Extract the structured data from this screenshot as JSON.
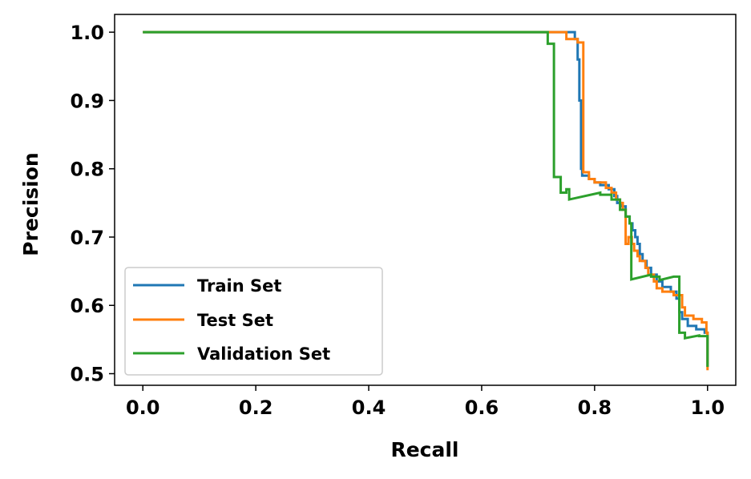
{
  "chart_data": {
    "type": "line",
    "title": "",
    "xlabel": "Recall",
    "ylabel": "Precision",
    "xlim": [
      -0.05,
      1.05
    ],
    "ylim": [
      0.483,
      1.026
    ],
    "xticks": [
      0.0,
      0.2,
      0.4,
      0.6,
      0.8,
      1.0
    ],
    "xtick_labels": [
      "0.0",
      "0.2",
      "0.4",
      "0.6",
      "0.8",
      "1.0"
    ],
    "yticks": [
      0.5,
      0.6,
      0.7,
      0.8,
      0.9,
      1.0
    ],
    "ytick_labels": [
      "0.5",
      "0.6",
      "0.7",
      "0.8",
      "0.9",
      "1.0"
    ],
    "grid": false,
    "legend_position": "lower-left",
    "series": [
      {
        "name": "Train Set",
        "color": "#1f77b4",
        "points": [
          [
            0.0,
            1.0
          ],
          [
            0.765,
            1.0
          ],
          [
            0.765,
            0.99
          ],
          [
            0.77,
            0.99
          ],
          [
            0.77,
            0.96
          ],
          [
            0.773,
            0.96
          ],
          [
            0.773,
            0.9
          ],
          [
            0.776,
            0.9
          ],
          [
            0.776,
            0.8
          ],
          [
            0.778,
            0.8
          ],
          [
            0.778,
            0.79
          ],
          [
            0.79,
            0.79
          ],
          [
            0.79,
            0.785
          ],
          [
            0.8,
            0.785
          ],
          [
            0.8,
            0.78
          ],
          [
            0.81,
            0.78
          ],
          [
            0.81,
            0.776
          ],
          [
            0.825,
            0.776
          ],
          [
            0.825,
            0.77
          ],
          [
            0.835,
            0.77
          ],
          [
            0.835,
            0.76
          ],
          [
            0.84,
            0.76
          ],
          [
            0.84,
            0.75
          ],
          [
            0.848,
            0.75
          ],
          [
            0.848,
            0.745
          ],
          [
            0.855,
            0.745
          ],
          [
            0.855,
            0.73
          ],
          [
            0.862,
            0.73
          ],
          [
            0.862,
            0.72
          ],
          [
            0.867,
            0.72
          ],
          [
            0.867,
            0.71
          ],
          [
            0.872,
            0.71
          ],
          [
            0.872,
            0.7
          ],
          [
            0.876,
            0.7
          ],
          [
            0.876,
            0.69
          ],
          [
            0.88,
            0.69
          ],
          [
            0.88,
            0.675
          ],
          [
            0.885,
            0.675
          ],
          [
            0.885,
            0.665
          ],
          [
            0.892,
            0.665
          ],
          [
            0.892,
            0.655
          ],
          [
            0.9,
            0.655
          ],
          [
            0.9,
            0.645
          ],
          [
            0.91,
            0.645
          ],
          [
            0.91,
            0.635
          ],
          [
            0.92,
            0.635
          ],
          [
            0.92,
            0.627
          ],
          [
            0.935,
            0.627
          ],
          [
            0.935,
            0.62
          ],
          [
            0.945,
            0.62
          ],
          [
            0.945,
            0.61
          ],
          [
            0.95,
            0.61
          ],
          [
            0.95,
            0.59
          ],
          [
            0.955,
            0.59
          ],
          [
            0.955,
            0.58
          ],
          [
            0.965,
            0.58
          ],
          [
            0.965,
            0.57
          ],
          [
            0.98,
            0.57
          ],
          [
            0.98,
            0.565
          ],
          [
            0.995,
            0.565
          ],
          [
            0.995,
            0.56
          ],
          [
            1.0,
            0.56
          ],
          [
            1.0,
            0.51
          ]
        ]
      },
      {
        "name": "Test Set",
        "color": "#ff7f0e",
        "points": [
          [
            0.0,
            1.0
          ],
          [
            0.75,
            1.0
          ],
          [
            0.75,
            0.99
          ],
          [
            0.77,
            0.99
          ],
          [
            0.77,
            0.985
          ],
          [
            0.78,
            0.985
          ],
          [
            0.78,
            0.795
          ],
          [
            0.79,
            0.795
          ],
          [
            0.79,
            0.785
          ],
          [
            0.8,
            0.785
          ],
          [
            0.8,
            0.78
          ],
          [
            0.82,
            0.78
          ],
          [
            0.82,
            0.772
          ],
          [
            0.83,
            0.772
          ],
          [
            0.83,
            0.765
          ],
          [
            0.838,
            0.765
          ],
          [
            0.838,
            0.755
          ],
          [
            0.845,
            0.755
          ],
          [
            0.845,
            0.75
          ],
          [
            0.85,
            0.75
          ],
          [
            0.85,
            0.74
          ],
          [
            0.855,
            0.74
          ],
          [
            0.855,
            0.69
          ],
          [
            0.86,
            0.69
          ],
          [
            0.86,
            0.7
          ],
          [
            0.866,
            0.7
          ],
          [
            0.866,
            0.69
          ],
          [
            0.87,
            0.69
          ],
          [
            0.87,
            0.68
          ],
          [
            0.876,
            0.68
          ],
          [
            0.876,
            0.672
          ],
          [
            0.88,
            0.672
          ],
          [
            0.88,
            0.665
          ],
          [
            0.89,
            0.665
          ],
          [
            0.89,
            0.655
          ],
          [
            0.895,
            0.655
          ],
          [
            0.895,
            0.645
          ],
          [
            0.905,
            0.645
          ],
          [
            0.905,
            0.635
          ],
          [
            0.91,
            0.635
          ],
          [
            0.91,
            0.625
          ],
          [
            0.92,
            0.625
          ],
          [
            0.92,
            0.62
          ],
          [
            0.94,
            0.62
          ],
          [
            0.94,
            0.615
          ],
          [
            0.955,
            0.615
          ],
          [
            0.955,
            0.597
          ],
          [
            0.96,
            0.597
          ],
          [
            0.96,
            0.585
          ],
          [
            0.975,
            0.585
          ],
          [
            0.975,
            0.58
          ],
          [
            0.99,
            0.58
          ],
          [
            0.99,
            0.575
          ],
          [
            0.998,
            0.575
          ],
          [
            0.998,
            0.56
          ],
          [
            1.0,
            0.56
          ],
          [
            1.0,
            0.505
          ]
        ]
      },
      {
        "name": "Validation Set",
        "color": "#2ca02c",
        "points": [
          [
            0.0,
            1.0
          ],
          [
            0.717,
            1.0
          ],
          [
            0.717,
            0.983
          ],
          [
            0.728,
            0.983
          ],
          [
            0.728,
            0.788
          ],
          [
            0.74,
            0.788
          ],
          [
            0.74,
            0.765
          ],
          [
            0.75,
            0.765
          ],
          [
            0.75,
            0.77
          ],
          [
            0.755,
            0.77
          ],
          [
            0.755,
            0.755
          ],
          [
            0.81,
            0.765
          ],
          [
            0.81,
            0.762
          ],
          [
            0.83,
            0.762
          ],
          [
            0.83,
            0.755
          ],
          [
            0.845,
            0.755
          ],
          [
            0.845,
            0.74
          ],
          [
            0.855,
            0.74
          ],
          [
            0.855,
            0.73
          ],
          [
            0.862,
            0.73
          ],
          [
            0.862,
            0.72
          ],
          [
            0.865,
            0.72
          ],
          [
            0.865,
            0.638
          ],
          [
            0.9,
            0.645
          ],
          [
            0.9,
            0.642
          ],
          [
            0.915,
            0.642
          ],
          [
            0.915,
            0.637
          ],
          [
            0.94,
            0.642
          ],
          [
            0.95,
            0.642
          ],
          [
            0.95,
            0.56
          ],
          [
            0.96,
            0.56
          ],
          [
            0.96,
            0.552
          ],
          [
            0.985,
            0.556
          ],
          [
            0.985,
            0.555
          ],
          [
            1.0,
            0.555
          ],
          [
            1.0,
            0.51
          ]
        ]
      }
    ]
  }
}
